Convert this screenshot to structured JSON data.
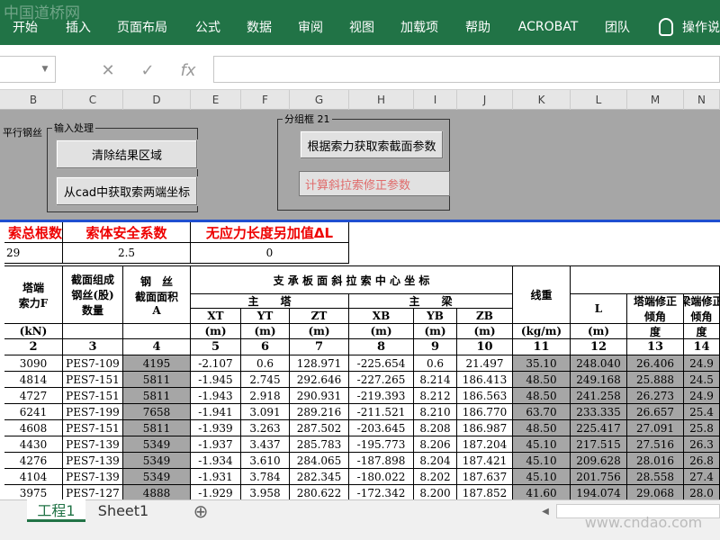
{
  "watermark_top": "中国道桥网",
  "ribbon": {
    "tabs": [
      "开始",
      "插入",
      "页面布局",
      "公式",
      "数据",
      "审阅",
      "视图",
      "加载项",
      "帮助",
      "ACROBAT",
      "团队",
      "操作说"
    ]
  },
  "formula_bar": {
    "cancel": "✕",
    "enter": "✓",
    "function": "fx"
  },
  "columns": [
    "B",
    "C",
    "D",
    "E",
    "F",
    "G",
    "H",
    "I",
    "J",
    "K",
    "L",
    "M",
    "N"
  ],
  "controls": {
    "side_label": "平行钢丝",
    "group1": {
      "title": "输入处理",
      "buttons": [
        "清除结果区域",
        "从cad中获取索两端坐标"
      ]
    },
    "group2": {
      "title": "分组框 21",
      "button": "根据索力获取索截面参数",
      "textbox": "计算斜拉索修正参数"
    }
  },
  "summary": {
    "headers": [
      "索总根数",
      "索体安全系数",
      "无应力长度另加值ΔL"
    ],
    "values": [
      "29",
      "2.5",
      "0"
    ]
  },
  "table": {
    "header": {
      "group_title": "支 承 板 面 斜 拉 索 中 心 坐 标",
      "tower": "主　　塔",
      "girder": "主　　梁",
      "labels": [
        [
          "塔端",
          "索力F"
        ],
        [
          "截面组成",
          "钢丝(股)",
          "数量"
        ],
        [
          "钢　丝",
          "截面面积",
          "A"
        ],
        [
          "线重"
        ],
        [
          "L"
        ],
        [
          "塔端修正",
          "倾角"
        ],
        [
          "梁端修正",
          "倾角"
        ]
      ],
      "coords": [
        "XT",
        "YT",
        "ZT",
        "XB",
        "YB",
        "ZB"
      ],
      "units": [
        "(kN)",
        null,
        null,
        "(m)",
        "(m)",
        "(m)",
        "(m)",
        "(m)",
        "(m)",
        "(kg/m)",
        "(m)",
        "度",
        "度"
      ],
      "numbers": [
        "2",
        "3",
        "4",
        "5",
        "6",
        "7",
        "8",
        "9",
        "10",
        "11",
        "12",
        "13",
        "14"
      ]
    },
    "rows": [
      [
        "3090",
        "PES7-109",
        "4195",
        "-2.107",
        "0.6",
        "128.971",
        "-225.654",
        "0.6",
        "21.497",
        "35.10",
        "248.040",
        "26.406",
        "24.9"
      ],
      [
        "4814",
        "PES7-151",
        "5811",
        "-1.945",
        "2.745",
        "292.646",
        "-227.265",
        "8.214",
        "186.413",
        "48.50",
        "249.168",
        "25.888",
        "24.5"
      ],
      [
        "4727",
        "PES7-151",
        "5811",
        "-1.943",
        "2.918",
        "290.931",
        "-219.393",
        "8.212",
        "186.563",
        "48.50",
        "241.258",
        "26.273",
        "24.9"
      ],
      [
        "6241",
        "PES7-199",
        "7658",
        "-1.941",
        "3.091",
        "289.216",
        "-211.521",
        "8.210",
        "186.770",
        "63.70",
        "233.335",
        "26.657",
        "25.4"
      ],
      [
        "4608",
        "PES7-151",
        "5811",
        "-1.939",
        "3.263",
        "287.502",
        "-203.645",
        "8.208",
        "186.987",
        "48.50",
        "225.417",
        "27.091",
        "25.8"
      ],
      [
        "4430",
        "PES7-139",
        "5349",
        "-1.937",
        "3.437",
        "285.783",
        "-195.773",
        "8.206",
        "187.204",
        "45.10",
        "217.515",
        "27.516",
        "26.3"
      ],
      [
        "4276",
        "PES7-139",
        "5349",
        "-1.934",
        "3.610",
        "284.065",
        "-187.898",
        "8.204",
        "187.421",
        "45.10",
        "209.628",
        "28.016",
        "26.8"
      ],
      [
        "4104",
        "PES7-139",
        "5349",
        "-1.931",
        "3.784",
        "282.345",
        "-180.022",
        "8.202",
        "187.637",
        "45.10",
        "201.756",
        "28.558",
        "27.4"
      ],
      [
        "3975",
        "PES7-127",
        "4888",
        "-1.929",
        "3.958",
        "280.622",
        "-172.342",
        "8.200",
        "187.852",
        "41.60",
        "194.074",
        "29.068",
        "28.0"
      ]
    ]
  },
  "sheets": [
    "工程1",
    "Sheet1"
  ],
  "add_sheet": "⊕",
  "watermark_bottom": "www.cndao.com"
}
